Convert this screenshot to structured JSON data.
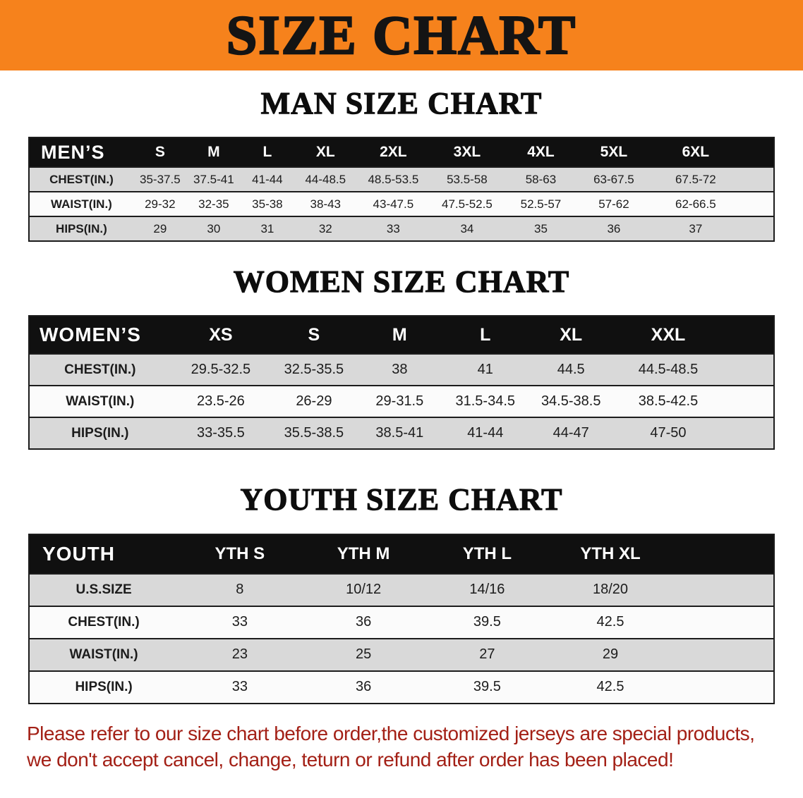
{
  "banner": {
    "title": "SIZE CHART",
    "background_color": "#f6821c",
    "text_color": "#141414"
  },
  "sections": [
    {
      "id": "men",
      "heading": "MAN SIZE CHART",
      "header": [
        "MEN’S",
        "S",
        "M",
        "L",
        "XL",
        "2XL",
        "3XL",
        "4XL",
        "5XL",
        "6XL"
      ],
      "rows": [
        [
          "CHEST(IN.)",
          "35-37.5",
          "37.5-41",
          "41-44",
          "44-48.5",
          "48.5-53.5",
          "53.5-58",
          "58-63",
          "63-67.5",
          "67.5-72"
        ],
        [
          "WAIST(IN.)",
          "29-32",
          "32-35",
          "35-38",
          "38-43",
          "43-47.5",
          "47.5-52.5",
          "52.5-57",
          "57-62",
          "62-66.5"
        ],
        [
          "HIPS(IN.)",
          "29",
          "30",
          "31",
          "32",
          "33",
          "34",
          "35",
          "36",
          "37"
        ]
      ]
    },
    {
      "id": "women",
      "heading": "WOMEN SIZE CHART",
      "header": [
        "WOMEN’S",
        "XS",
        "S",
        "M",
        "L",
        "XL",
        "XXL"
      ],
      "rows": [
        [
          "CHEST(IN.)",
          "29.5-32.5",
          "32.5-35.5",
          "38",
          "41",
          "44.5",
          "44.5-48.5"
        ],
        [
          "WAIST(IN.)",
          "23.5-26",
          "26-29",
          "29-31.5",
          "31.5-34.5",
          "34.5-38.5",
          "38.5-42.5"
        ],
        [
          "HIPS(IN.)",
          "33-35.5",
          "35.5-38.5",
          "38.5-41",
          "41-44",
          "44-47",
          "47-50"
        ]
      ]
    },
    {
      "id": "youth",
      "heading": "YOUTH SIZE CHART",
      "header": [
        "YOUTH",
        "YTH S",
        "YTH M",
        "YTH L",
        "YTH XL"
      ],
      "rows": [
        [
          "U.S.SIZE",
          "8",
          "10/12",
          "14/16",
          "18/20"
        ],
        [
          "CHEST(IN.)",
          "33",
          "36",
          "39.5",
          "42.5"
        ],
        [
          "WAIST(IN.)",
          "23",
          "25",
          "27",
          "29"
        ],
        [
          "HIPS(IN.)",
          "33",
          "36",
          "39.5",
          "42.5"
        ]
      ]
    }
  ],
  "disclaimer": {
    "line1": "Please refer to our size chart before order,the customized jerseys are special products,",
    "line2": "we don't accept cancel, change, teturn or refund after order has been placed!",
    "text_color": "#a32016"
  },
  "colors": {
    "table_header_bg": "#101010",
    "table_header_text": "#ffffff",
    "row_shaded": "#d9d9d9",
    "row_plain": "#fbfbfb"
  }
}
